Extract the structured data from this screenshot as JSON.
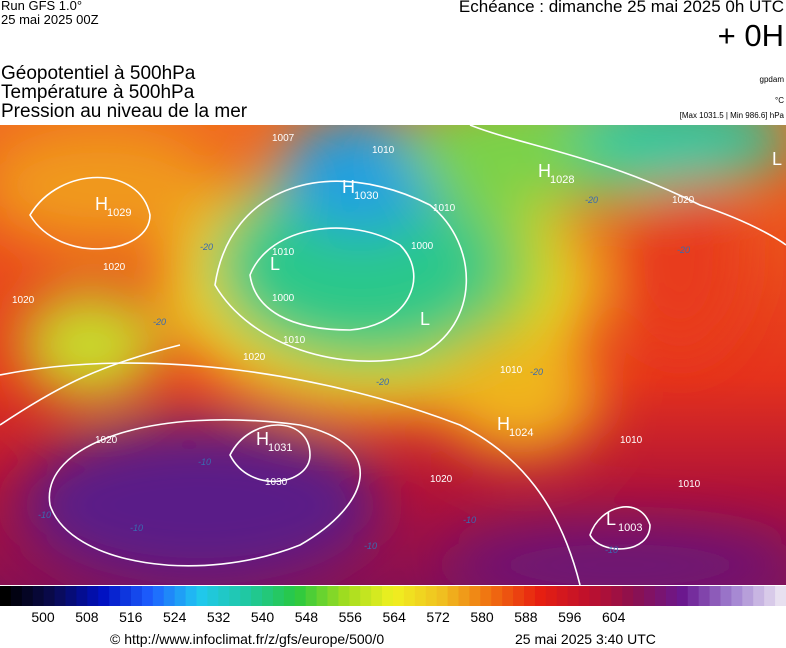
{
  "header": {
    "run": "Run GFS 1.0°",
    "date": "25 mai 2025 00Z",
    "echeance": "Echéance : dimanche 25 mai 2025 0h UTC",
    "offset": "+ 0H"
  },
  "legend": {
    "lines": [
      "Géopotentiel à 500hPa",
      "Température à 500hPa",
      "Pression au niveau de la mer"
    ],
    "units": [
      "gpdam",
      "°C",
      "[Max 1031.5 | Min 986.6] hPa"
    ]
  },
  "map": {
    "centers": [
      {
        "letter": "H",
        "number": "1029"
      },
      {
        "letter": "H",
        "number": "1030"
      },
      {
        "letter": "H",
        "number": "1028"
      },
      {
        "letter": "H",
        "number": "1031"
      },
      {
        "letter": "H",
        "number": "1024"
      },
      {
        "letter": "L",
        "number": "1003"
      },
      {
        "letter": "L"
      },
      {
        "letter": "L"
      },
      {
        "letter": "L"
      }
    ],
    "isobar_labels": [
      "1007",
      "1010",
      "1010",
      "1000",
      "1010",
      "1000",
      "1010",
      "1020",
      "1020",
      "1020",
      "1020",
      "1030",
      "1020",
      "1020",
      "1010",
      "1010",
      "1010"
    ],
    "temp_labels": [
      "-20",
      "-20",
      "-20",
      "-20",
      "-20",
      "-20",
      "-10",
      "-10",
      "-10",
      "-10",
      "-10",
      "-10"
    ]
  },
  "colorbar": {
    "labels": [
      "500",
      "508",
      "516",
      "524",
      "532",
      "540",
      "548",
      "556",
      "564",
      "572",
      "580",
      "588",
      "596",
      "604"
    ]
  },
  "footer": {
    "url": "© http://www.infoclimat.fr/z/gfs/europe/500/0",
    "time": "25 mai 2025  3:40 UTC"
  }
}
